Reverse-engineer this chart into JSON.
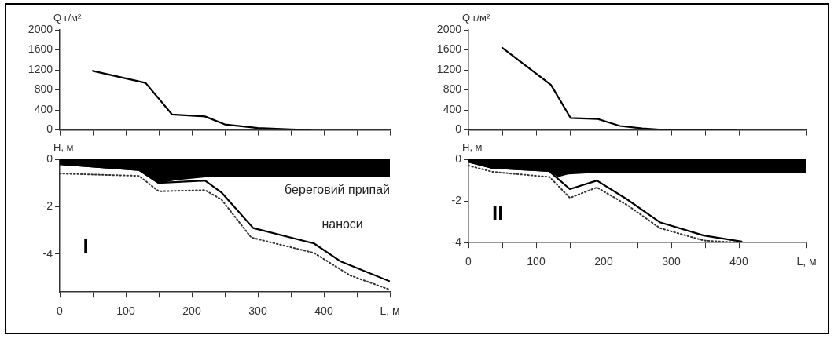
{
  "chart_data": [
    {
      "type": "line",
      "ylabel": "Q г/м²",
      "xlim": [
        0,
        500
      ],
      "ylim": [
        0,
        2000
      ],
      "yticks": [
        0,
        400,
        800,
        1200,
        1600,
        2000
      ],
      "xticks": [
        {
          "value": 0,
          "label": null
        },
        {
          "value": 50,
          "label": null
        },
        {
          "value": 100,
          "label": null
        },
        {
          "value": 150,
          "label": null
        },
        {
          "value": 200,
          "label": null
        },
        {
          "value": 250,
          "label": null
        },
        {
          "value": 300,
          "label": null
        },
        {
          "value": 350,
          "label": null
        },
        {
          "value": 400,
          "label": null
        },
        {
          "value": 450,
          "label": null
        },
        {
          "value": 500,
          "label": null
        }
      ],
      "tick_labels": "y",
      "marker": "none",
      "series": [
        {
          "color": "#000000",
          "x": [
            50,
            130,
            170,
            220,
            250,
            300,
            350,
            380
          ],
          "values": [
            1180,
            940,
            310,
            270,
            110,
            40,
            10,
            0
          ]
        }
      ]
    },
    {
      "type": "line",
      "ylabel": "Q г/м²",
      "xlim": [
        0,
        500
      ],
      "ylim": [
        0,
        2000
      ],
      "yticks": [
        0,
        400,
        800,
        1200,
        1600,
        2000
      ],
      "xticks": [
        {
          "value": 0,
          "label": null
        },
        {
          "value": 50,
          "label": null
        },
        {
          "value": 100,
          "label": null
        },
        {
          "value": 150,
          "label": null
        },
        {
          "value": 200,
          "label": null
        },
        {
          "value": 250,
          "label": null
        },
        {
          "value": 300,
          "label": null
        },
        {
          "value": 350,
          "label": null
        },
        {
          "value": 400,
          "label": null
        },
        {
          "value": 450,
          "label": null
        },
        {
          "value": 500,
          "label": null
        }
      ],
      "tick_labels": "y",
      "marker": "none",
      "series": [
        {
          "color": "#000000",
          "x": [
            50,
            122,
            151,
            191,
            224,
            257,
            290,
            395
          ],
          "values": [
            1640,
            900,
            240,
            220,
            80,
            30,
            0,
            0
          ]
        }
      ]
    },
    {
      "type": "line",
      "ylabel": "H, м",
      "xlim": [
        0,
        500
      ],
      "ylim": [
        -5.6,
        0
      ],
      "yticks": [
        0,
        -2,
        -4
      ],
      "xticks": [
        0,
        {
          "value": 50,
          "label": null
        },
        100,
        {
          "value": 150,
          "label": null
        },
        200,
        {
          "value": 250,
          "label": null
        },
        300,
        {
          "value": 350,
          "label": null
        },
        400,
        {
          "value": 450,
          "label": null
        },
        {
          "value": 500,
          "label": "L, м"
        }
      ],
      "marker": "none",
      "annotations": [
        "I"
      ],
      "series": [
        {
          "type": "area",
          "name": "береговий припай",
          "color": "#000000",
          "x": [
            0,
            120,
            150,
            175,
            230,
            500
          ],
          "values": [
            -0.2,
            -0.45,
            -1.0,
            -0.85,
            -0.7,
            -0.7
          ]
        },
        {
          "color": "#000000",
          "x": [
            0,
            120,
            150,
            220,
            245,
            293,
            385,
            425,
            500
          ],
          "values": [
            -0.2,
            -0.45,
            -1.0,
            -0.9,
            -1.4,
            -2.9,
            -3.55,
            -4.3,
            -5.15
          ]
        },
        {
          "name": "наноси",
          "color": "#333333",
          "line_style": "dotted",
          "x": [
            0,
            120,
            150,
            220,
            245,
            290,
            385,
            440,
            500
          ],
          "values": [
            -0.6,
            -0.7,
            -1.35,
            -1.3,
            -1.7,
            -3.3,
            -3.95,
            -4.9,
            -5.5
          ]
        }
      ]
    },
    {
      "type": "line",
      "ylabel": "H, м",
      "xlim": [
        0,
        500
      ],
      "ylim": [
        -4,
        0
      ],
      "yticks": [
        0,
        -2,
        -4
      ],
      "xticks": [
        0,
        {
          "value": 50,
          "label": null
        },
        100,
        {
          "value": 150,
          "label": null
        },
        200,
        {
          "value": 250,
          "label": null
        },
        300,
        {
          "value": 350,
          "label": null
        },
        400,
        {
          "value": 450,
          "label": null
        },
        {
          "value": 500,
          "label": "L, м"
        }
      ],
      "marker": "none",
      "annotations": [
        "II"
      ],
      "series": [
        {
          "type": "area",
          "color": "#000000",
          "x": [
            0,
            35,
            120,
            133,
            148,
            185,
            500
          ],
          "values": [
            -0.12,
            -0.41,
            -0.56,
            -0.81,
            -0.68,
            -0.62,
            -0.62
          ]
        },
        {
          "color": "#000000",
          "x": [
            0,
            35,
            119,
            150,
            190,
            235,
            283,
            348,
            404
          ],
          "values": [
            -0.12,
            -0.41,
            -0.56,
            -1.43,
            -1.02,
            -1.93,
            -3.02,
            -3.66,
            -3.95
          ]
        },
        {
          "color": "#333333",
          "line_style": "dotted",
          "x": [
            0,
            35,
            120,
            150,
            190,
            235,
            283,
            348,
            400
          ],
          "values": [
            -0.3,
            -0.6,
            -0.85,
            -1.85,
            -1.35,
            -2.2,
            -3.3,
            -3.9,
            -4.0
          ]
        }
      ]
    }
  ]
}
